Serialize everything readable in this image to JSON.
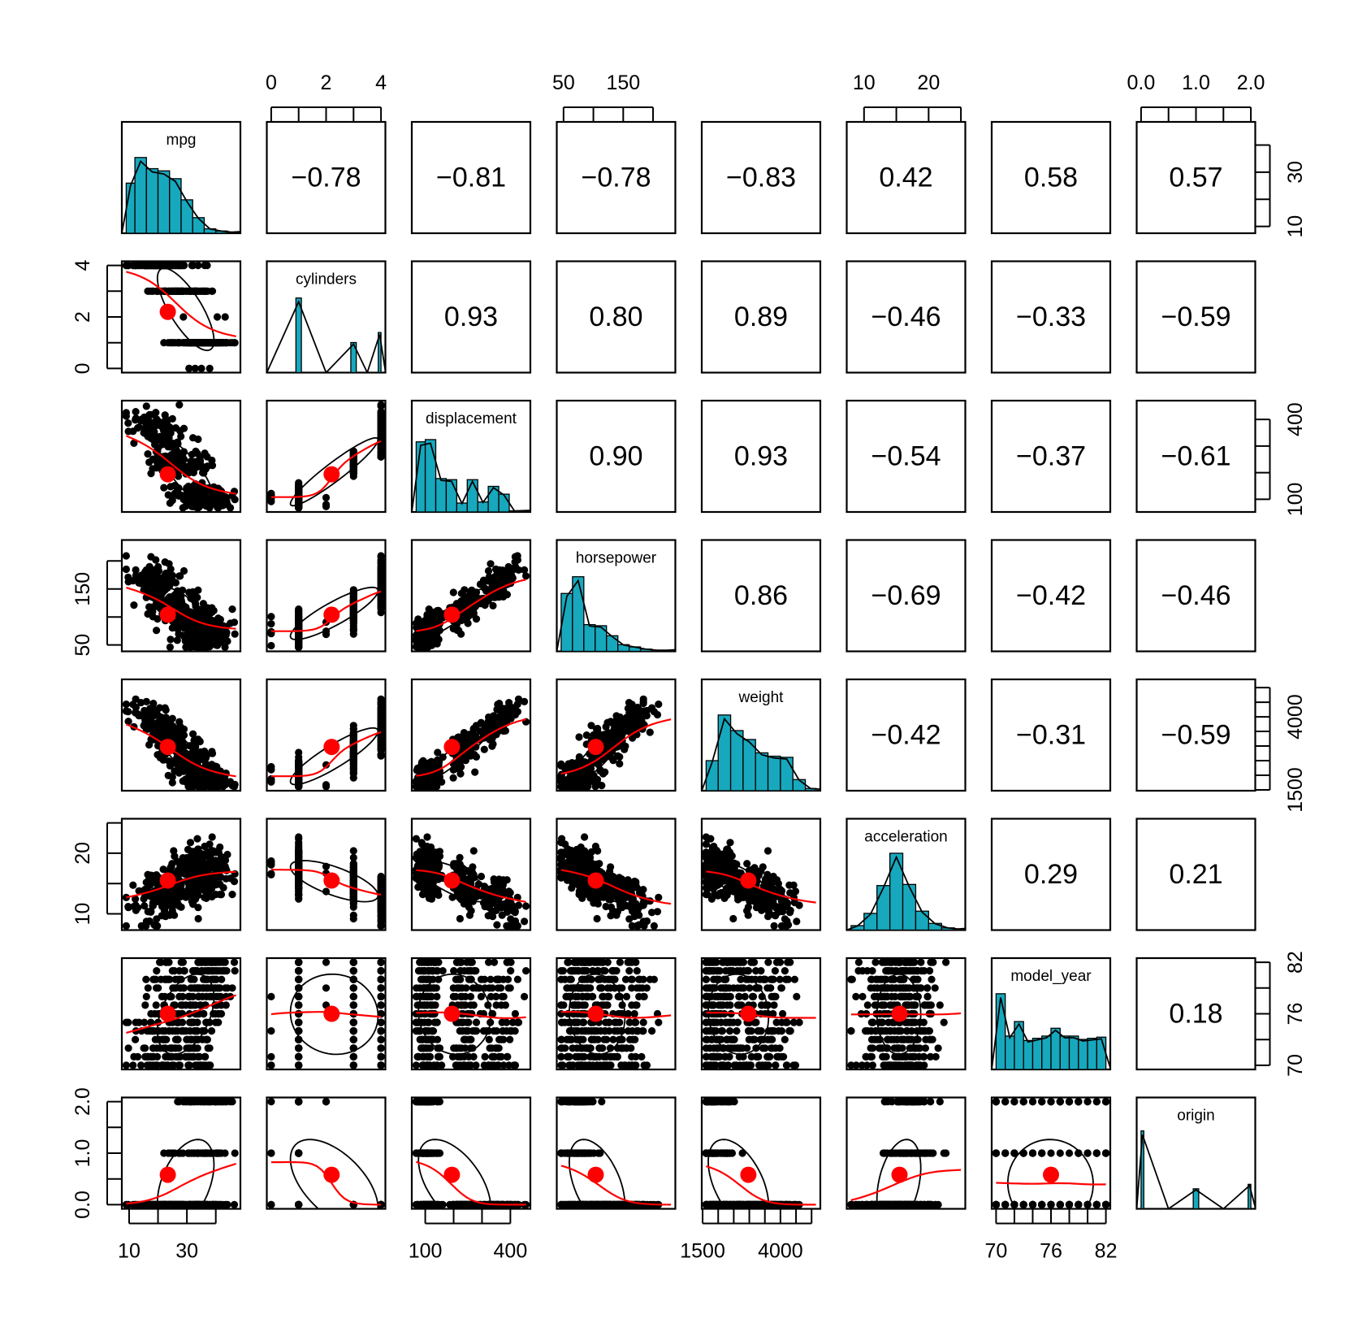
{
  "chart_data": {
    "type": "scatter-matrix",
    "title": "",
    "variables": [
      "mpg",
      "cylinders",
      "displacement",
      "horsepower",
      "weight",
      "acceleration",
      "model_year",
      "origin"
    ],
    "ranges": {
      "mpg": [
        9,
        47
      ],
      "cylinders": [
        0,
        4
      ],
      "displacement": [
        68,
        455
      ],
      "horsepower": [
        46,
        230
      ],
      "weight": [
        1613,
        5140
      ],
      "acceleration": [
        8,
        25
      ],
      "model_year": [
        70,
        82
      ],
      "origin": [
        0,
        2
      ]
    },
    "means": {
      "mpg": 23.4,
      "cylinders": 2.2,
      "displacement": 194,
      "horsepower": 104,
      "weight": 2970,
      "acceleration": 15.5,
      "model_year": 76,
      "origin": 0.58
    },
    "correlations": [
      {
        "row": "mpg",
        "col": "cylinders",
        "value": "−0.78"
      },
      {
        "row": "mpg",
        "col": "displacement",
        "value": "−0.81"
      },
      {
        "row": "mpg",
        "col": "horsepower",
        "value": "−0.78"
      },
      {
        "row": "mpg",
        "col": "weight",
        "value": "−0.83"
      },
      {
        "row": "mpg",
        "col": "acceleration",
        "value": "0.42"
      },
      {
        "row": "mpg",
        "col": "model_year",
        "value": "0.58"
      },
      {
        "row": "mpg",
        "col": "origin",
        "value": "0.57"
      },
      {
        "row": "cylinders",
        "col": "displacement",
        "value": "0.93"
      },
      {
        "row": "cylinders",
        "col": "horsepower",
        "value": "0.80"
      },
      {
        "row": "cylinders",
        "col": "weight",
        "value": "0.89"
      },
      {
        "row": "cylinders",
        "col": "acceleration",
        "value": "−0.46"
      },
      {
        "row": "cylinders",
        "col": "model_year",
        "value": "−0.33"
      },
      {
        "row": "cylinders",
        "col": "origin",
        "value": "−0.59"
      },
      {
        "row": "displacement",
        "col": "horsepower",
        "value": "0.90"
      },
      {
        "row": "displacement",
        "col": "weight",
        "value": "0.93"
      },
      {
        "row": "displacement",
        "col": "acceleration",
        "value": "−0.54"
      },
      {
        "row": "displacement",
        "col": "model_year",
        "value": "−0.37"
      },
      {
        "row": "displacement",
        "col": "origin",
        "value": "−0.61"
      },
      {
        "row": "horsepower",
        "col": "weight",
        "value": "0.86"
      },
      {
        "row": "horsepower",
        "col": "acceleration",
        "value": "−0.69"
      },
      {
        "row": "horsepower",
        "col": "model_year",
        "value": "−0.42"
      },
      {
        "row": "horsepower",
        "col": "origin",
        "value": "−0.46"
      },
      {
        "row": "weight",
        "col": "acceleration",
        "value": "−0.42"
      },
      {
        "row": "weight",
        "col": "model_year",
        "value": "−0.31"
      },
      {
        "row": "weight",
        "col": "origin",
        "value": "−0.59"
      },
      {
        "row": "acceleration",
        "col": "model_year",
        "value": "0.29"
      },
      {
        "row": "acceleration",
        "col": "origin",
        "value": "0.21"
      },
      {
        "row": "model_year",
        "col": "origin",
        "value": "0.18"
      }
    ],
    "histograms": {
      "mpg": {
        "edges": [
          9,
          12,
          16,
          20,
          24,
          28,
          32,
          36,
          40,
          44,
          47
        ],
        "heights": [
          0.45,
          0.68,
          0.58,
          0.56,
          0.49,
          0.3,
          0.14,
          0.04,
          0.02,
          0.01
        ]
      },
      "cylinders": {
        "edges": [
          0.9,
          1.1,
          2.9,
          3.1,
          3.9,
          4.0
        ],
        "heights": [
          0.67,
          0,
          0.27,
          0,
          0.36
        ]
      },
      "displacement": {
        "edges": [
          68,
          100,
          137,
          174,
          211,
          248,
          285,
          322,
          359,
          396,
          433
        ],
        "heights": [
          0.63,
          0.65,
          0.3,
          0.29,
          0.08,
          0.29,
          0.09,
          0.23,
          0.16,
          0.01
        ]
      },
      "horsepower": {
        "edges": [
          46,
          65,
          84,
          103,
          122,
          141,
          160,
          179,
          198,
          217,
          230
        ],
        "heights": [
          0.52,
          0.67,
          0.24,
          0.23,
          0.14,
          0.06,
          0.04,
          0.02,
          0.01,
          0.01
        ]
      },
      "weight": {
        "edges": [
          1613,
          2000,
          2400,
          2800,
          3200,
          3600,
          4000,
          4400,
          4800,
          5140
        ],
        "heights": [
          0.27,
          0.68,
          0.54,
          0.46,
          0.34,
          0.31,
          0.3,
          0.1,
          0.02
        ]
      },
      "acceleration": {
        "edges": [
          8,
          10,
          12,
          14,
          16,
          18,
          20,
          22,
          24,
          25
        ],
        "heights": [
          0.04,
          0.15,
          0.4,
          0.69,
          0.41,
          0.17,
          0.06,
          0.02,
          0.01
        ]
      },
      "model_year": {
        "edges": [
          70,
          71,
          72,
          73,
          74,
          75,
          76,
          77,
          78,
          79,
          80,
          81,
          82
        ],
        "heights": [
          0.68,
          0.3,
          0.43,
          0.26,
          0.28,
          0.3,
          0.37,
          0.3,
          0.3,
          0.27,
          0.28,
          0.29
        ]
      },
      "origin": {
        "edges": [
          0,
          0.05,
          0.95,
          1.05,
          1.95,
          2.0
        ],
        "heights": [
          0.7,
          0,
          0.18,
          0,
          0.22
        ]
      }
    },
    "x_tick_labels": {
      "top": [
        {
          "var": "cylinders",
          "ticks": [
            0,
            1,
            2,
            3,
            4
          ],
          "labels": [
            "0",
            "",
            "2",
            "",
            "4"
          ]
        },
        {
          "var": "horsepower",
          "ticks": [
            50,
            100,
            150,
            200
          ],
          "labels": [
            "50",
            "",
            "150",
            ""
          ]
        },
        {
          "var": "acceleration",
          "ticks": [
            10,
            15,
            20,
            25
          ],
          "labels": [
            "10",
            "",
            "20",
            ""
          ]
        },
        {
          "var": "origin",
          "ticks": [
            0,
            0.5,
            1.0,
            1.5,
            2.0
          ],
          "labels": [
            "0.0",
            "",
            "1.0",
            "",
            "2.0"
          ]
        }
      ],
      "bottom": [
        {
          "var": "mpg",
          "ticks": [
            10,
            20,
            30,
            40
          ],
          "labels": [
            "10",
            "",
            "30",
            ""
          ]
        },
        {
          "var": "displacement",
          "ticks": [
            100,
            200,
            300,
            400
          ],
          "labels": [
            "100",
            "",
            "",
            "400"
          ]
        },
        {
          "var": "weight",
          "ticks": [
            1500,
            2000,
            2500,
            3000,
            3500,
            4000,
            4500,
            5000
          ],
          "labels": [
            "1500",
            "",
            "",
            "",
            "",
            "4000",
            "",
            ""
          ]
        },
        {
          "var": "model_year",
          "ticks": [
            70,
            72,
            74,
            76,
            78,
            80,
            82
          ],
          "labels": [
            "70",
            "",
            "",
            "76",
            "",
            "",
            "82"
          ]
        }
      ]
    },
    "y_tick_labels": {
      "left": [
        {
          "var": "cylinders",
          "ticks": [
            0,
            1,
            2,
            3,
            4
          ],
          "labels": [
            "0",
            "",
            "2",
            "",
            "4"
          ]
        },
        {
          "var": "horsepower",
          "ticks": [
            50,
            100,
            150,
            200
          ],
          "labels": [
            "50",
            "",
            "150",
            ""
          ]
        },
        {
          "var": "acceleration",
          "ticks": [
            10,
            15,
            20,
            25
          ],
          "labels": [
            "10",
            "",
            "20",
            ""
          ]
        },
        {
          "var": "origin",
          "ticks": [
            0,
            0.5,
            1.0,
            1.5,
            2.0
          ],
          "labels": [
            "0.0",
            "",
            "1.0",
            "",
            "2.0"
          ]
        }
      ],
      "right": [
        {
          "var": "mpg",
          "ticks": [
            10,
            20,
            30,
            40
          ],
          "labels": [
            "10",
            "",
            "30",
            ""
          ]
        },
        {
          "var": "displacement",
          "ticks": [
            100,
            200,
            300,
            400
          ],
          "labels": [
            "100",
            "",
            "",
            "400"
          ]
        },
        {
          "var": "weight",
          "ticks": [
            1500,
            2000,
            2500,
            3000,
            3500,
            4000,
            4500,
            5000
          ],
          "labels": [
            "1500",
            "",
            "",
            "",
            "",
            "4000",
            "",
            ""
          ]
        },
        {
          "var": "model_year",
          "ticks": [
            70,
            73,
            76,
            79,
            82
          ],
          "labels": [
            "70",
            "",
            "76",
            "",
            "82"
          ]
        }
      ]
    },
    "colors": {
      "histogram_fill": "#17a8bd",
      "loess_line": "#ff0000",
      "center_point": "#ff0000",
      "points": "#000000"
    },
    "grid": false
  }
}
